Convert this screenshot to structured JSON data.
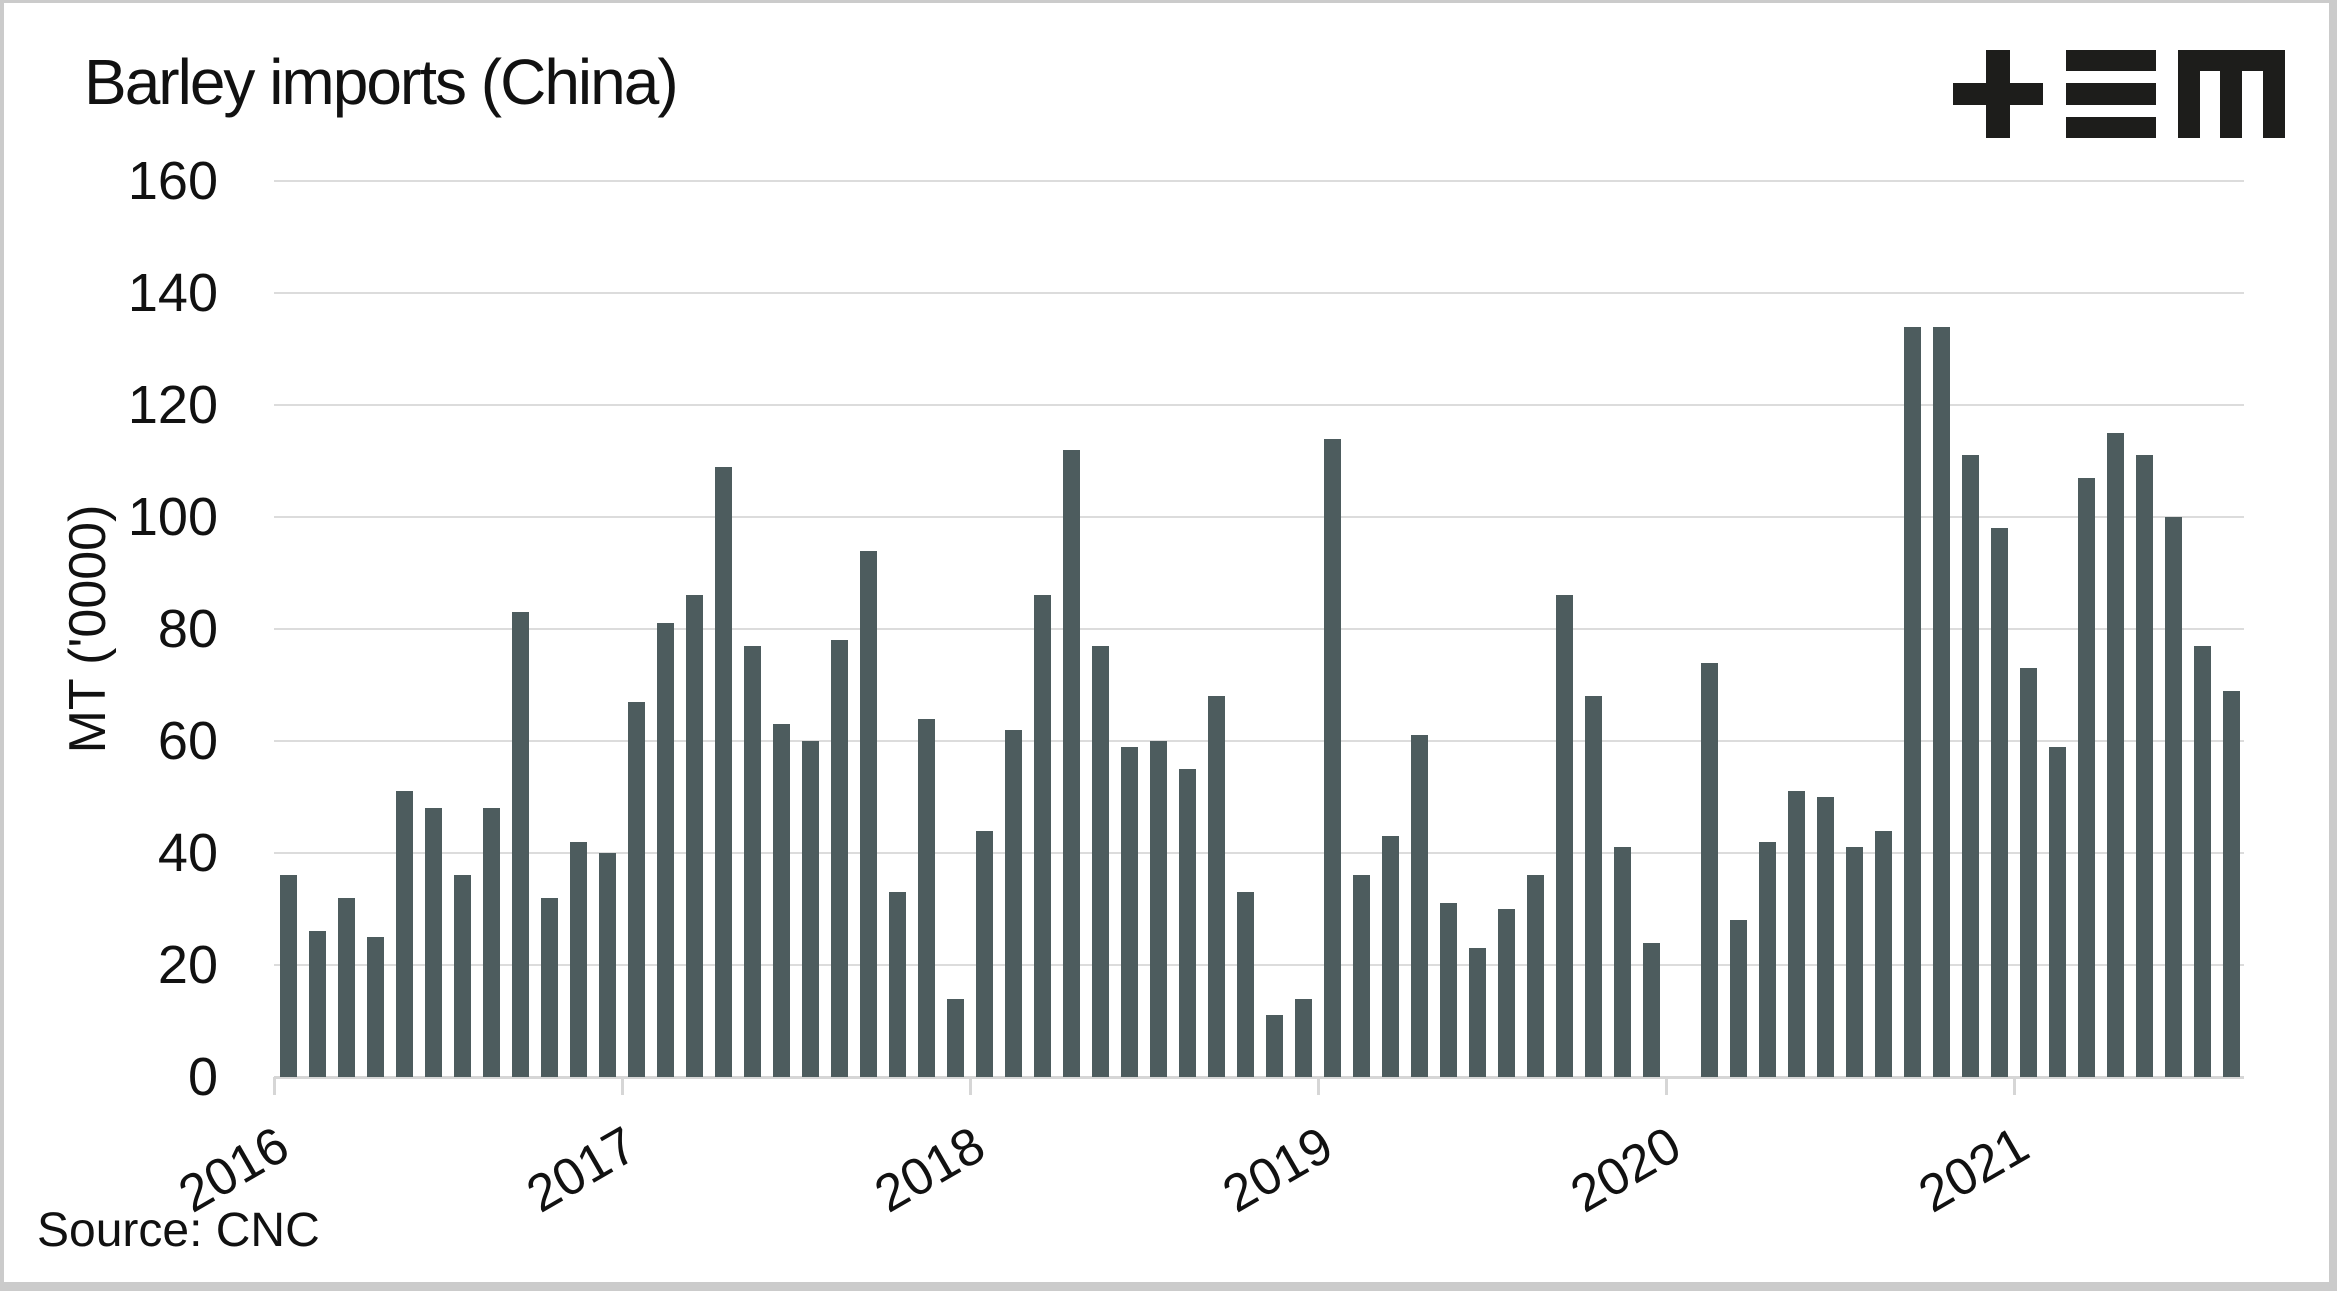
{
  "title": "Barley imports (China)",
  "source_note": "Source: CNC",
  "logo": {
    "name": "tem-logo",
    "glyphs": [
      "plus",
      "triple-bar",
      "m"
    ],
    "color": "#1d1d1b"
  },
  "colors": {
    "bar": "#4d5c5e",
    "gridline": "#dcdcdc",
    "axis": "#d6d6d6",
    "text": "#111111",
    "border": "#cbcbcb",
    "background": "#ffffff"
  },
  "chart_data": {
    "type": "bar",
    "title": "Barley imports (China)",
    "xlabel": "",
    "ylabel": "MT ('0000)",
    "ylim": [
      0,
      160
    ],
    "yticks": [
      0,
      20,
      40,
      60,
      80,
      100,
      120,
      140,
      160
    ],
    "grid": true,
    "legend": "none",
    "x_tick_labels": [
      "2016",
      "2017",
      "2018",
      "2019",
      "2020",
      "2021"
    ],
    "x_tick_label_rotation_deg": -30,
    "note": "Monthly bars; January 2020 has no bar (no data).",
    "x": [
      "2016-01",
      "2016-02",
      "2016-03",
      "2016-04",
      "2016-05",
      "2016-06",
      "2016-07",
      "2016-08",
      "2016-09",
      "2016-10",
      "2016-11",
      "2016-12",
      "2017-01",
      "2017-02",
      "2017-03",
      "2017-04",
      "2017-05",
      "2017-06",
      "2017-07",
      "2017-08",
      "2017-09",
      "2017-10",
      "2017-11",
      "2017-12",
      "2018-01",
      "2018-02",
      "2018-03",
      "2018-04",
      "2018-05",
      "2018-06",
      "2018-07",
      "2018-08",
      "2018-09",
      "2018-10",
      "2018-11",
      "2018-12",
      "2019-01",
      "2019-02",
      "2019-03",
      "2019-04",
      "2019-05",
      "2019-06",
      "2019-07",
      "2019-08",
      "2019-09",
      "2019-10",
      "2019-11",
      "2019-12",
      "2020-01",
      "2020-02",
      "2020-03",
      "2020-04",
      "2020-05",
      "2020-06",
      "2020-07",
      "2020-08",
      "2020-09",
      "2020-10",
      "2020-11",
      "2020-12",
      "2021-01",
      "2021-02",
      "2021-03",
      "2021-04",
      "2021-05",
      "2021-06",
      "2021-07",
      "2021-08"
    ],
    "values": [
      36,
      26,
      32,
      25,
      51,
      48,
      36,
      48,
      83,
      32,
      42,
      40,
      67,
      81,
      86,
      109,
      77,
      63,
      60,
      78,
      94,
      33,
      64,
      14,
      44,
      62,
      86,
      112,
      77,
      59,
      60,
      55,
      68,
      33,
      11,
      14,
      114,
      36,
      43,
      61,
      31,
      23,
      30,
      36,
      86,
      68,
      41,
      24,
      null,
      74,
      28,
      42,
      51,
      50,
      41,
      44,
      134,
      134,
      111,
      98,
      73,
      59,
      107,
      115,
      111,
      100,
      77,
      69
    ]
  }
}
